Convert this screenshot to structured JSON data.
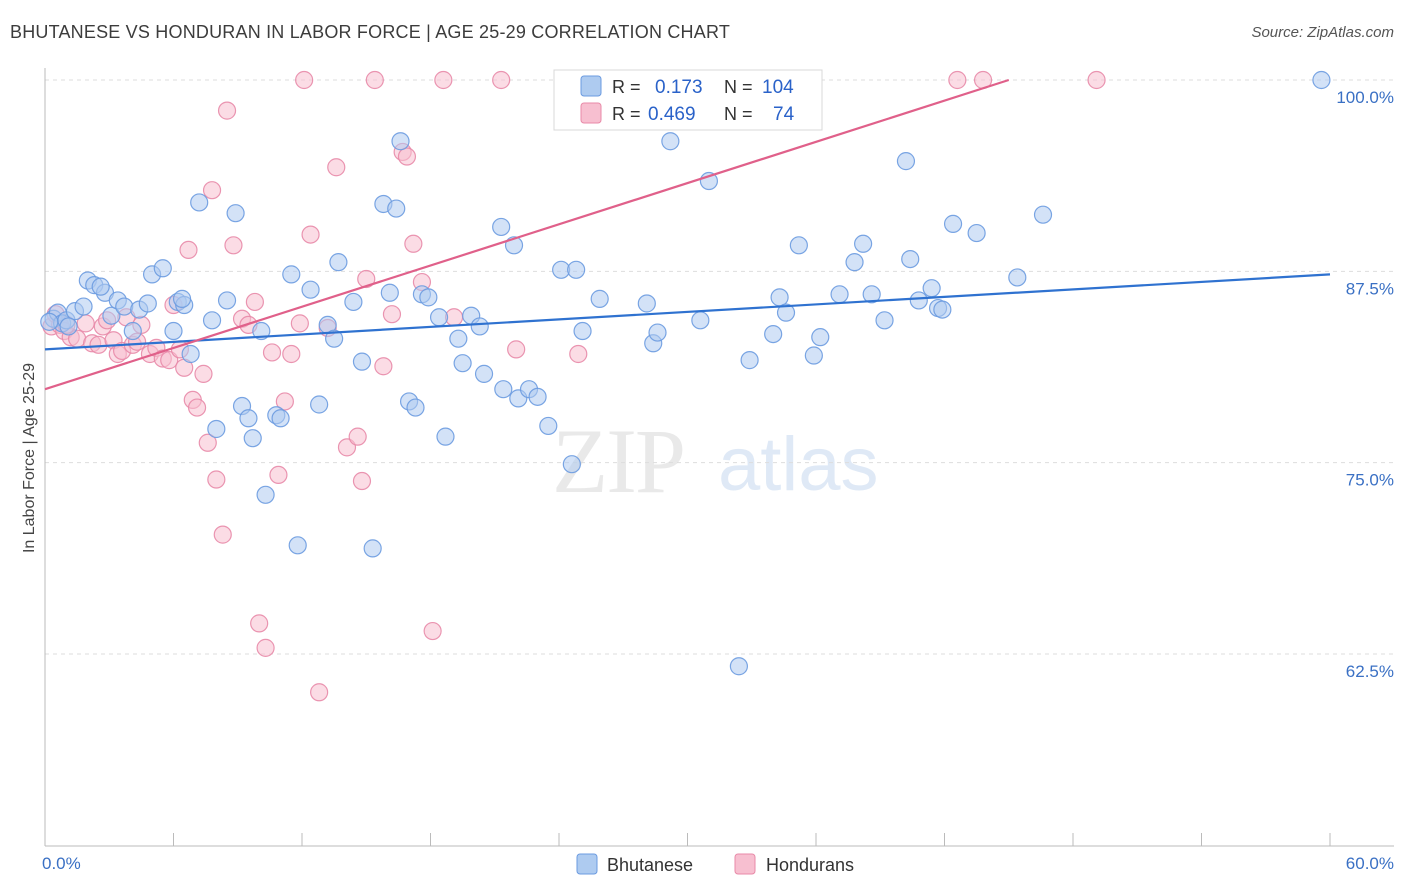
{
  "header": {
    "title": "BHUTANESE VS HONDURAN IN LABOR FORCE | AGE 25-29 CORRELATION CHART",
    "source": "Source: ZipAtlas.com"
  },
  "watermark": {
    "zip": "ZIP",
    "atlas": "atlas"
  },
  "colors": {
    "blue_fill": "#aecbf0",
    "blue_stroke": "#6b9be0",
    "blue_line": "#2f72d0",
    "pink_fill": "#f7bfd0",
    "pink_stroke": "#e88aa8",
    "pink_line": "#e0608a",
    "axis_text": "#3a70c4",
    "grid": "#dddddd"
  },
  "stats_box": {
    "rows": [
      {
        "r_label": "R =",
        "r_value": "0.173",
        "n_label": "N =",
        "n_value": "104"
      },
      {
        "r_label": "R =",
        "r_value": "0.469",
        "n_label": "N =",
        "n_value": "74"
      }
    ]
  },
  "legend": {
    "items": [
      "Bhutanese",
      "Hondurans"
    ]
  },
  "chart_data": {
    "type": "scatter",
    "xlabel": "",
    "ylabel": "In Labor Force | Age 25-29",
    "xlim": [
      0,
      60
    ],
    "ylim": [
      50,
      102
    ],
    "x_tick_labels": [
      "0.0%",
      "60.0%"
    ],
    "y_ticks": [
      62.5,
      75.0,
      87.5,
      100.0
    ],
    "y_tick_labels": [
      "62.5%",
      "75.0%",
      "87.5%",
      "100.0%"
    ],
    "grid": "horizontal dashed",
    "legend_position": "bottom-center",
    "series": [
      {
        "name": "Bhutanese",
        "r": 0.173,
        "n": 104,
        "trend": {
          "x": [
            0,
            60
          ],
          "y": [
            82.4,
            87.3
          ]
        },
        "points": [
          [
            0.4,
            84.4
          ],
          [
            0.6,
            84.8
          ],
          [
            0.8,
            84.1
          ],
          [
            1.0,
            84.3
          ],
          [
            1.4,
            84.9
          ],
          [
            1.8,
            85.2
          ],
          [
            2.0,
            86.9
          ],
          [
            2.3,
            86.6
          ],
          [
            2.8,
            86.1
          ],
          [
            3.1,
            84.6
          ],
          [
            3.4,
            85.6
          ],
          [
            3.7,
            85.2
          ],
          [
            4.1,
            83.6
          ],
          [
            4.4,
            85.0
          ],
          [
            4.8,
            85.4
          ],
          [
            5.0,
            87.3
          ],
          [
            5.5,
            87.7
          ],
          [
            6.0,
            83.6
          ],
          [
            6.2,
            85.5
          ],
          [
            6.5,
            85.3
          ],
          [
            6.8,
            82.1
          ],
          [
            7.2,
            92.0
          ],
          [
            7.8,
            84.3
          ],
          [
            8.0,
            77.2
          ],
          [
            8.5,
            85.6
          ],
          [
            8.9,
            91.3
          ],
          [
            9.2,
            78.7
          ],
          [
            9.5,
            77.9
          ],
          [
            9.7,
            76.6
          ],
          [
            10.1,
            83.6
          ],
          [
            10.3,
            72.9
          ],
          [
            10.8,
            78.1
          ],
          [
            11.0,
            77.9
          ],
          [
            11.5,
            87.3
          ],
          [
            11.8,
            69.6
          ],
          [
            12.4,
            86.3
          ],
          [
            12.8,
            78.8
          ],
          [
            13.2,
            84.0
          ],
          [
            13.5,
            83.1
          ],
          [
            13.7,
            88.1
          ],
          [
            14.4,
            85.5
          ],
          [
            14.8,
            81.6
          ],
          [
            15.3,
            69.4
          ],
          [
            15.8,
            91.9
          ],
          [
            16.1,
            86.1
          ],
          [
            16.4,
            91.6
          ],
          [
            16.6,
            96.0
          ],
          [
            17.0,
            79.0
          ],
          [
            17.3,
            78.6
          ],
          [
            17.6,
            86.0
          ],
          [
            17.9,
            85.8
          ],
          [
            18.4,
            84.5
          ],
          [
            18.7,
            76.7
          ],
          [
            19.3,
            83.1
          ],
          [
            19.5,
            81.5
          ],
          [
            19.9,
            84.6
          ],
          [
            20.3,
            83.9
          ],
          [
            20.5,
            80.8
          ],
          [
            21.3,
            90.4
          ],
          [
            21.4,
            79.8
          ],
          [
            21.9,
            89.2
          ],
          [
            22.1,
            79.2
          ],
          [
            22.6,
            79.8
          ],
          [
            23.0,
            79.3
          ],
          [
            23.5,
            77.4
          ],
          [
            24.1,
            87.6
          ],
          [
            24.6,
            74.9
          ],
          [
            24.8,
            87.6
          ],
          [
            25.1,
            83.6
          ],
          [
            25.9,
            85.7
          ],
          [
            28.1,
            85.4
          ],
          [
            28.4,
            82.8
          ],
          [
            28.6,
            83.5
          ],
          [
            29.2,
            96.0
          ],
          [
            30.6,
            84.3
          ],
          [
            31.0,
            93.4
          ],
          [
            32.4,
            61.7
          ],
          [
            32.9,
            81.7
          ],
          [
            34.0,
            83.4
          ],
          [
            34.3,
            85.8
          ],
          [
            34.6,
            84.8
          ],
          [
            35.2,
            89.2
          ],
          [
            35.9,
            82.0
          ],
          [
            36.2,
            83.2
          ],
          [
            37.1,
            86.0
          ],
          [
            37.8,
            88.1
          ],
          [
            38.2,
            89.3
          ],
          [
            38.6,
            86.0
          ],
          [
            39.2,
            84.3
          ],
          [
            40.2,
            94.7
          ],
          [
            40.4,
            88.3
          ],
          [
            40.8,
            85.6
          ],
          [
            41.4,
            86.4
          ],
          [
            41.7,
            85.1
          ],
          [
            41.9,
            85.0
          ],
          [
            42.4,
            90.6
          ],
          [
            43.5,
            90.0
          ],
          [
            45.4,
            87.1
          ],
          [
            46.6,
            91.2
          ],
          [
            59.6,
            100.0
          ],
          [
            0.2,
            84.2
          ],
          [
            1.1,
            83.9
          ],
          [
            2.6,
            86.5
          ],
          [
            6.4,
            85.7
          ]
        ]
      },
      {
        "name": "Hondurans",
        "r": 0.469,
        "n": 74,
        "trend": {
          "x": [
            0,
            45
          ],
          "y": [
            79.8,
            100.0
          ]
        },
        "points": [
          [
            0.3,
            83.9
          ],
          [
            0.5,
            84.7
          ],
          [
            0.7,
            84.0
          ],
          [
            0.9,
            83.6
          ],
          [
            1.2,
            83.2
          ],
          [
            1.5,
            83.1
          ],
          [
            1.9,
            84.1
          ],
          [
            2.2,
            82.8
          ],
          [
            2.5,
            82.7
          ],
          [
            2.7,
            83.9
          ],
          [
            2.9,
            84.3
          ],
          [
            3.2,
            83.0
          ],
          [
            3.4,
            82.1
          ],
          [
            3.6,
            82.3
          ],
          [
            3.8,
            84.5
          ],
          [
            4.1,
            82.7
          ],
          [
            4.3,
            82.9
          ],
          [
            4.5,
            84.0
          ],
          [
            4.9,
            82.1
          ],
          [
            5.2,
            82.5
          ],
          [
            5.5,
            81.8
          ],
          [
            5.8,
            81.7
          ],
          [
            6.0,
            85.3
          ],
          [
            6.3,
            82.4
          ],
          [
            6.5,
            81.2
          ],
          [
            6.7,
            88.9
          ],
          [
            6.9,
            79.1
          ],
          [
            7.1,
            78.6
          ],
          [
            7.4,
            80.8
          ],
          [
            7.6,
            76.3
          ],
          [
            7.8,
            92.8
          ],
          [
            8.0,
            73.9
          ],
          [
            8.3,
            70.3
          ],
          [
            8.5,
            98.0
          ],
          [
            8.8,
            89.2
          ],
          [
            9.2,
            84.4
          ],
          [
            9.5,
            84.0
          ],
          [
            9.8,
            85.5
          ],
          [
            10.0,
            64.5
          ],
          [
            10.3,
            62.9
          ],
          [
            10.6,
            82.2
          ],
          [
            10.9,
            74.2
          ],
          [
            11.2,
            79.0
          ],
          [
            11.5,
            82.1
          ],
          [
            11.9,
            84.1
          ],
          [
            12.1,
            100.0
          ],
          [
            12.4,
            89.9
          ],
          [
            12.8,
            60.0
          ],
          [
            13.2,
            83.8
          ],
          [
            13.6,
            94.3
          ],
          [
            14.1,
            76.0
          ],
          [
            14.6,
            76.7
          ],
          [
            14.8,
            73.8
          ],
          [
            15.0,
            87.0
          ],
          [
            15.4,
            100.0
          ],
          [
            15.8,
            81.3
          ],
          [
            16.2,
            84.7
          ],
          [
            16.7,
            95.3
          ],
          [
            16.9,
            95.0
          ],
          [
            17.2,
            89.3
          ],
          [
            17.6,
            86.8
          ],
          [
            18.1,
            64.0
          ],
          [
            18.6,
            100.0
          ],
          [
            19.1,
            84.5
          ],
          [
            21.3,
            100.0
          ],
          [
            22.0,
            82.4
          ],
          [
            24.2,
            100.0
          ],
          [
            24.9,
            82.1
          ],
          [
            27.2,
            100.0
          ],
          [
            28.5,
            100.0
          ],
          [
            42.6,
            100.0
          ],
          [
            43.8,
            100.0
          ],
          [
            49.1,
            100.0
          ],
          [
            1.0,
            84.0
          ]
        ]
      }
    ]
  }
}
